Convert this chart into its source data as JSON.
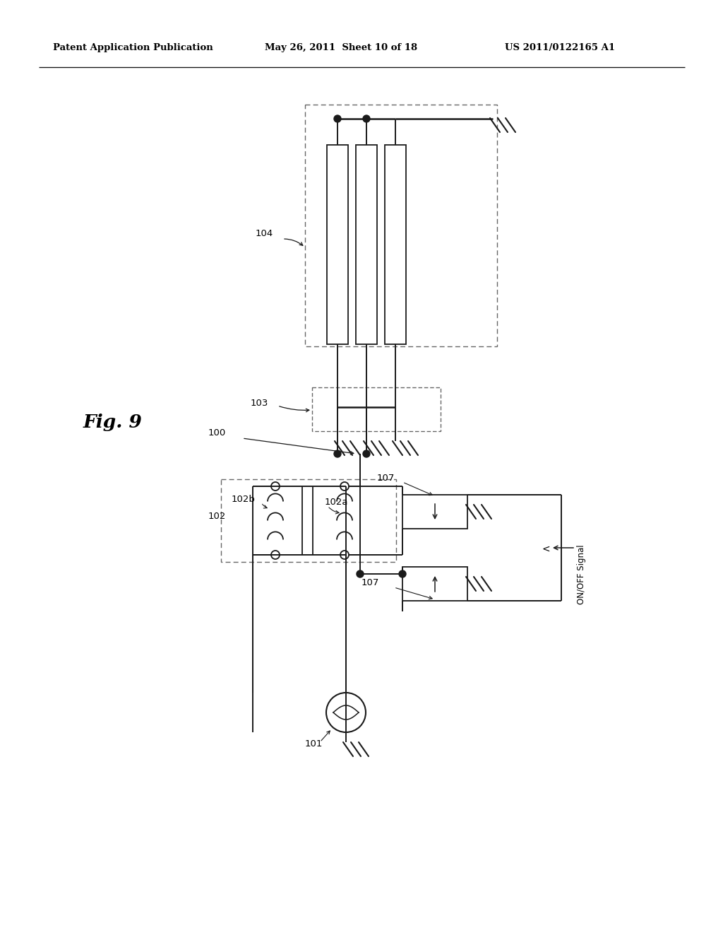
{
  "title_left": "Patent Application Publication",
  "title_mid": "May 26, 2011  Sheet 10 of 18",
  "title_right": "US 2011/0122165 A1",
  "bg_color": "#ffffff",
  "line_color": "#1a1a1a",
  "dash_color": "#666666"
}
